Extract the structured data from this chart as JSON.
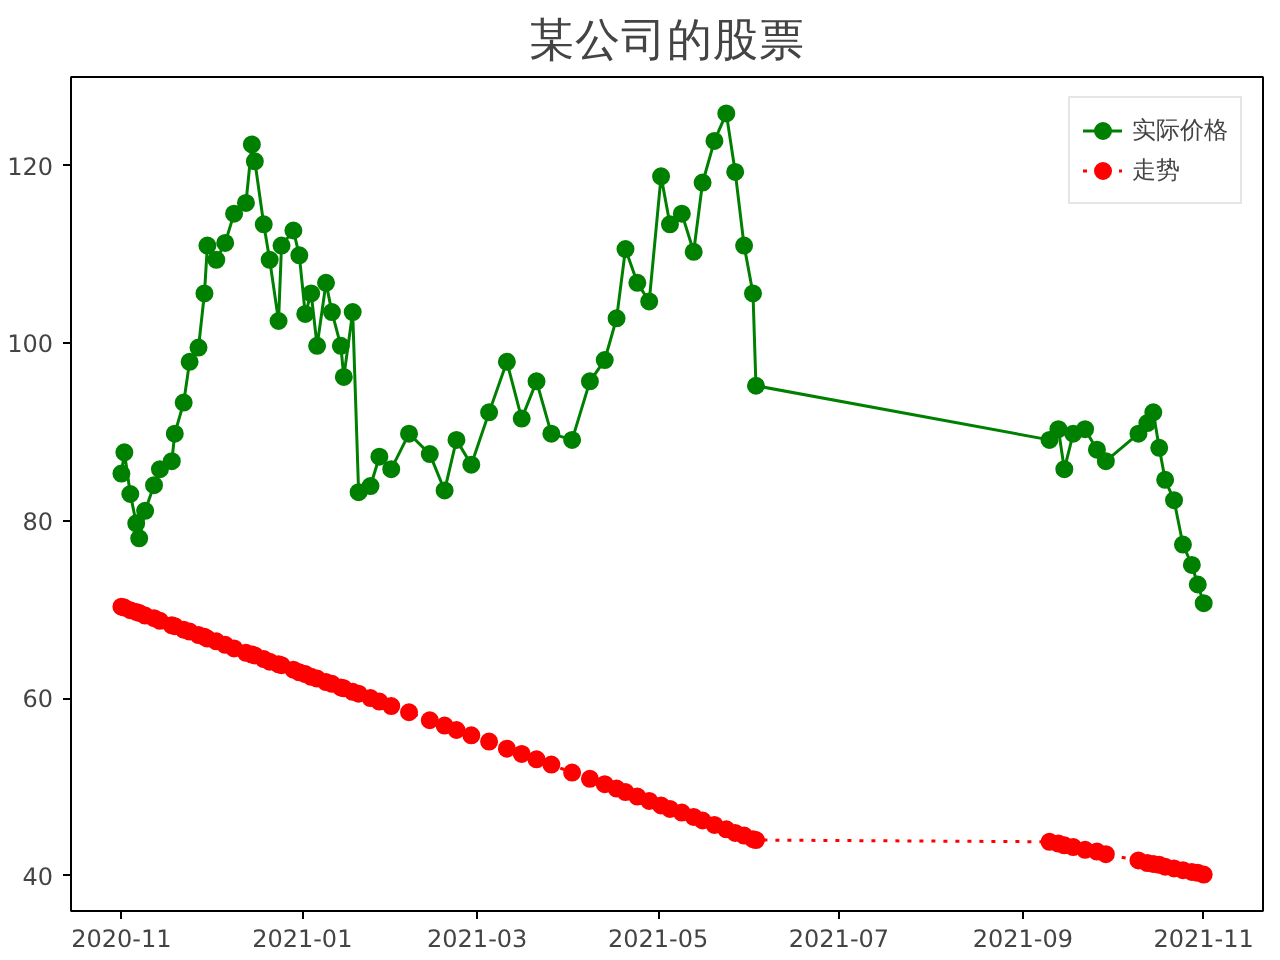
{
  "chart_data": {
    "type": "line",
    "title": "某公司的股票",
    "x": [
      "2020-11-01",
      "2020-11-02",
      "2020-11-04",
      "2020-11-06",
      "2020-11-07",
      "2020-11-09",
      "2020-11-12",
      "2020-11-14",
      "2020-11-18",
      "2020-11-19",
      "2020-11-22",
      "2020-11-24",
      "2020-11-27",
      "2020-11-29",
      "2020-11-30",
      "2020-12-03",
      "2020-12-06",
      "2020-12-09",
      "2020-12-13",
      "2020-12-15",
      "2020-12-16",
      "2020-12-19",
      "2020-12-21",
      "2020-12-24",
      "2020-12-25",
      "2020-12-29",
      "2020-12-31",
      "2021-01-02",
      "2021-01-04",
      "2021-01-06",
      "2021-01-09",
      "2021-01-11",
      "2021-01-14",
      "2021-01-15",
      "2021-01-18",
      "2021-01-20",
      "2021-01-24",
      "2021-01-27",
      "2021-01-31",
      "2021-02-06",
      "2021-02-13",
      "2021-02-18",
      "2021-02-22",
      "2021-02-27",
      "2021-03-05",
      "2021-03-11",
      "2021-03-16",
      "2021-03-21",
      "2021-03-26",
      "2021-04-02",
      "2021-04-08",
      "2021-04-13",
      "2021-04-17",
      "2021-04-20",
      "2021-04-24",
      "2021-04-28",
      "2021-05-02",
      "2021-05-05",
      "2021-05-09",
      "2021-05-13",
      "2021-05-16",
      "2021-05-20",
      "2021-05-24",
      "2021-05-27",
      "2021-05-30",
      "2021-06-02",
      "2021-06-03",
      "2021-09-10",
      "2021-09-13",
      "2021-09-15",
      "2021-09-18",
      "2021-09-22",
      "2021-09-26",
      "2021-09-29",
      "2021-10-10",
      "2021-10-13",
      "2021-10-15",
      "2021-10-17",
      "2021-10-19",
      "2021-10-22",
      "2021-10-25",
      "2021-10-28",
      "2021-10-30",
      "2021-11-01"
    ],
    "series": [
      {
        "name": "实际价格",
        "color": "#008000",
        "line_style": "solid",
        "marker": "circle",
        "values": [
          85.3,
          87.7,
          83.0,
          79.7,
          78.0,
          81.1,
          84.0,
          85.8,
          86.7,
          89.8,
          93.3,
          97.9,
          99.5,
          105.6,
          111.0,
          109.4,
          111.3,
          114.6,
          115.8,
          122.4,
          120.5,
          113.4,
          109.4,
          102.5,
          111.0,
          112.7,
          109.9,
          103.3,
          105.6,
          99.7,
          106.8,
          103.5,
          99.7,
          96.2,
          103.5,
          83.2,
          83.9,
          87.2,
          85.8,
          89.8,
          87.5,
          83.4,
          89.1,
          86.3,
          92.2,
          97.9,
          91.5,
          95.7,
          89.8,
          89.1,
          95.7,
          98.1,
          102.8,
          110.6,
          106.8,
          104.7,
          118.8,
          113.4,
          114.6,
          110.3,
          118.1,
          122.8,
          125.9,
          119.3,
          111.0,
          105.6,
          95.2,
          89.1,
          90.3,
          85.8,
          89.8,
          90.3,
          88.0,
          86.7,
          89.8,
          91.0,
          92.2,
          88.2,
          84.6,
          82.3,
          77.3,
          75.0,
          72.8,
          70.7
        ]
      },
      {
        "name": "走势",
        "color": "#ff0000",
        "line_style": "dotted",
        "marker": "circle",
        "values": [
          70.3,
          70.2,
          69.9,
          69.7,
          69.6,
          69.3,
          69.0,
          68.7,
          68.2,
          68.1,
          67.7,
          67.5,
          67.1,
          66.9,
          66.7,
          66.4,
          66.0,
          65.6,
          65.1,
          64.9,
          64.8,
          64.4,
          64.1,
          63.8,
          63.7,
          63.2,
          62.9,
          62.7,
          62.4,
          62.2,
          61.8,
          61.6,
          61.2,
          61.1,
          60.7,
          60.5,
          60.0,
          59.6,
          59.1,
          58.4,
          57.5,
          56.9,
          56.4,
          55.8,
          55.1,
          54.3,
          53.7,
          53.1,
          52.5,
          51.6,
          50.9,
          50.3,
          49.8,
          49.4,
          48.9,
          48.4,
          47.9,
          47.5,
          47.1,
          46.6,
          46.2,
          45.7,
          45.2,
          44.8,
          44.5,
          44.1,
          44.0,
          43.8,
          43.6,
          43.4,
          43.2,
          42.9,
          42.7,
          42.4,
          41.7,
          41.4,
          41.3,
          41.2,
          41.0,
          40.8,
          40.6,
          40.4,
          40.3,
          40.1
        ]
      }
    ],
    "xlim": [
      "2020-10-15",
      "2021-11-21"
    ],
    "xticks": [
      "2020-11",
      "2021-01",
      "2021-03",
      "2021-05",
      "2021-07",
      "2021-09",
      "2021-11"
    ],
    "ylim": [
      36,
      130
    ],
    "yticks": [
      40,
      60,
      80,
      100,
      120
    ],
    "grid": false,
    "legend": "top right"
  }
}
